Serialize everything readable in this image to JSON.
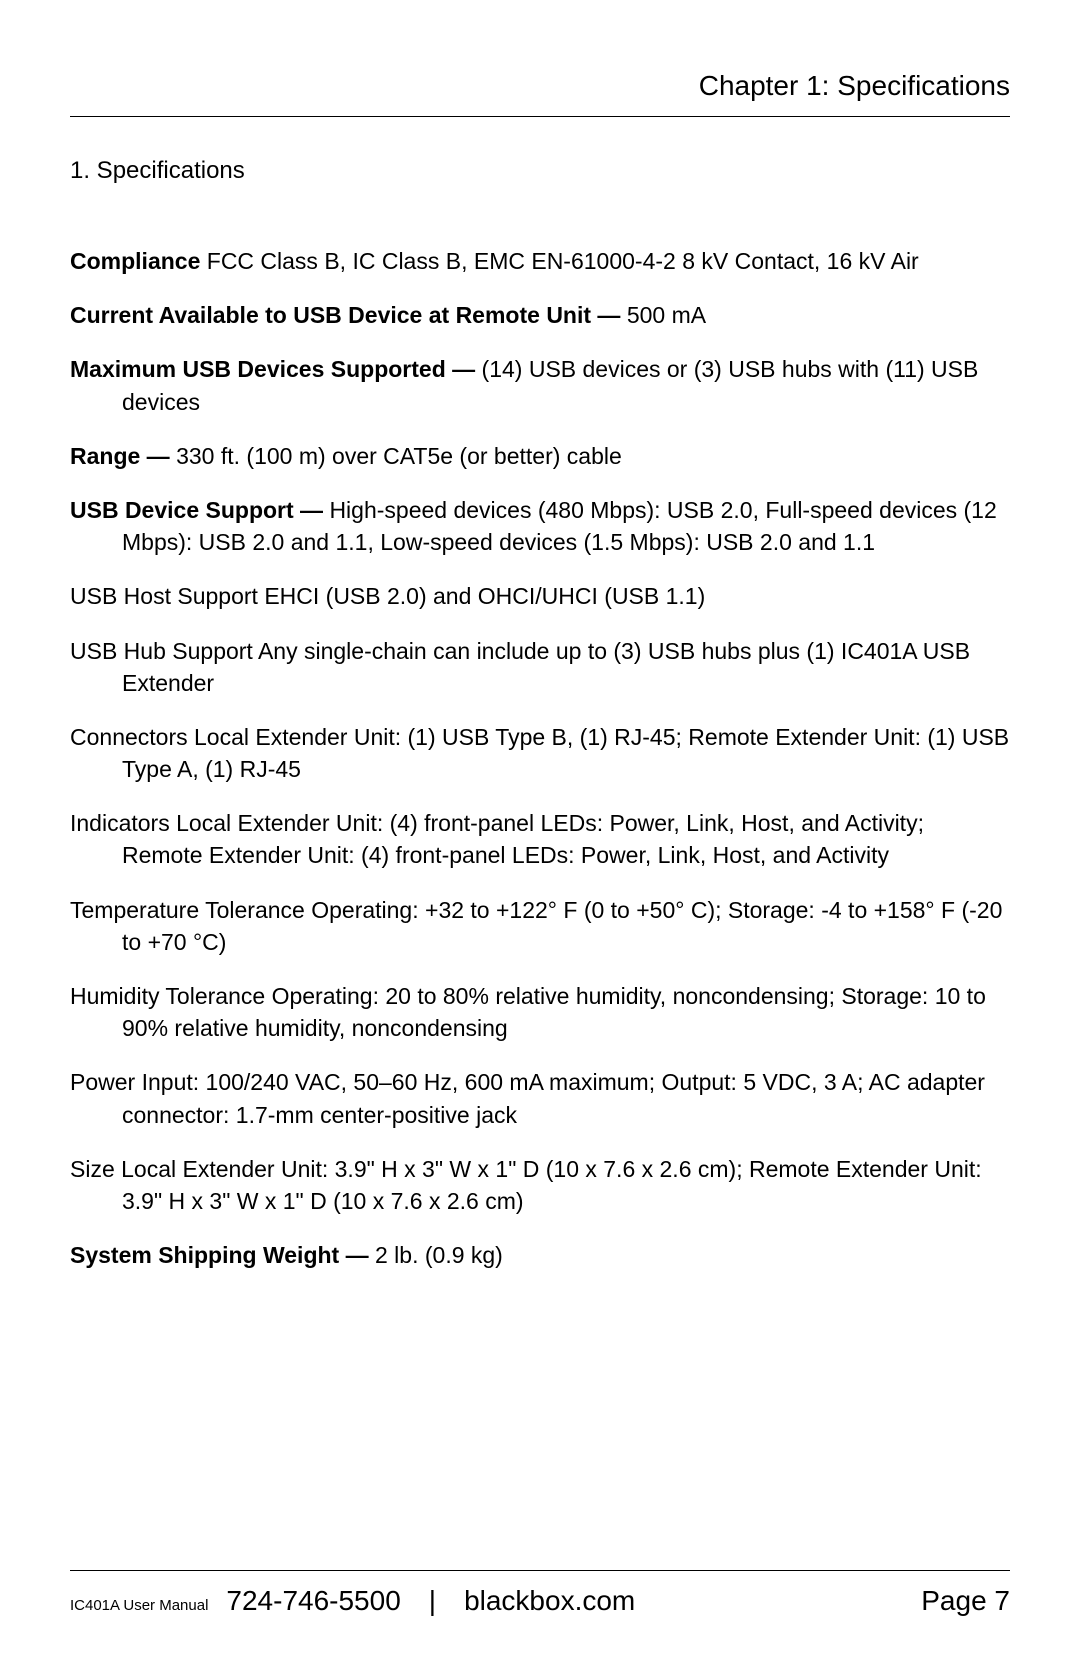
{
  "header": {
    "chapter": "Chapter 1: Specifications"
  },
  "section": {
    "heading": "1. Specifications"
  },
  "specs": [
    {
      "label": "Compliance",
      "sep": " ",
      "value": "FCC Class B, IC Class B, EMC EN-61000-4-2 8 kV Contact, 16 kV Air",
      "bold_label": true
    },
    {
      "label": "Current Available to USB Device at Remote Unit — ",
      "sep": "",
      "value": "500 mA",
      "bold_label": true
    },
    {
      "label": "Maximum USB Devices Supported — ",
      "sep": "",
      "value": "(14) USB devices or (3) USB hubs with (11) USB devices",
      "bold_label": true
    },
    {
      "label": "Range — ",
      "sep": "",
      "value": "330 ft. (100 m) over CAT5e (or better) cable",
      "bold_label": true
    },
    {
      "label": "USB Device Support — ",
      "sep": "",
      "value": "High-speed devices (480 Mbps): USB 2.0, Full-speed devices (12 Mbps): USB 2.0 and 1.1, Low-speed devices (1.5 Mbps): USB 2.0 and 1.1",
      "bold_label": true
    },
    {
      "label": "USB Host Support",
      "sep": "   ",
      "value": "EHCI (USB 2.0) and OHCI/UHCI (USB 1.1)",
      "bold_label": false
    },
    {
      "label": "USB Hub Support",
      "sep": "   ",
      "value": "Any single-chain can include up to (3) USB hubs plus (1) IC401A USB Extender",
      "bold_label": false
    },
    {
      "label": "Connectors",
      "sep": "   ",
      "value": "Local Extender Unit: (1) USB Type B, (1) RJ-45; Remote Extender Unit: (1) USB Type A, (1) RJ-45",
      "bold_label": false
    },
    {
      "label": "Indicators",
      "sep": "   ",
      "value": "Local Extender Unit: (4) front-panel LEDs: Power, Link, Host, and Activity; Remote Extender Unit: (4) front-panel LEDs: Power, Link, Host, and Activity",
      "bold_label": false
    },
    {
      "label": "Temperature Tolerance",
      "sep": "   ",
      "value": "Operating: +32 to +122° F (0 to +50° C); Storage: -4 to +158° F (-20 to +70 °C)",
      "bold_label": false
    },
    {
      "label": "Humidity Tolerance",
      "sep": "   ",
      "value": "Operating: 20 to 80% relative humidity, noncondensing; Storage: 10 to 90% relative humidity, noncondensing",
      "bold_label": false
    },
    {
      "label": "Power",
      "sep": "   ",
      "value": "Input: 100/240 VAC, 50–60 Hz, 600 mA maximum; Output: 5 VDC, 3 A; AC adapter connector: 1.7-mm center-positive jack",
      "bold_label": false
    },
    {
      "label": "Size",
      "sep": "   ",
      "value": "Local Extender Unit: 3.9\" H x 3\" W x 1\" D (10 x 7.6 x 2.6 cm); Remote Extender Unit: 3.9\" H x 3\" W x 1\" D (10 x 7.6 x 2.6 cm)",
      "bold_label": false
    },
    {
      "label": "System Shipping Weight — ",
      "sep": "",
      "value": "2 lb. (0.9 kg)",
      "bold_label": true
    }
  ],
  "footer": {
    "manual": "IC401A User Manual",
    "phone": "724-746-5500",
    "separator": "|",
    "site": "blackbox.com",
    "page": "Page 7"
  }
}
